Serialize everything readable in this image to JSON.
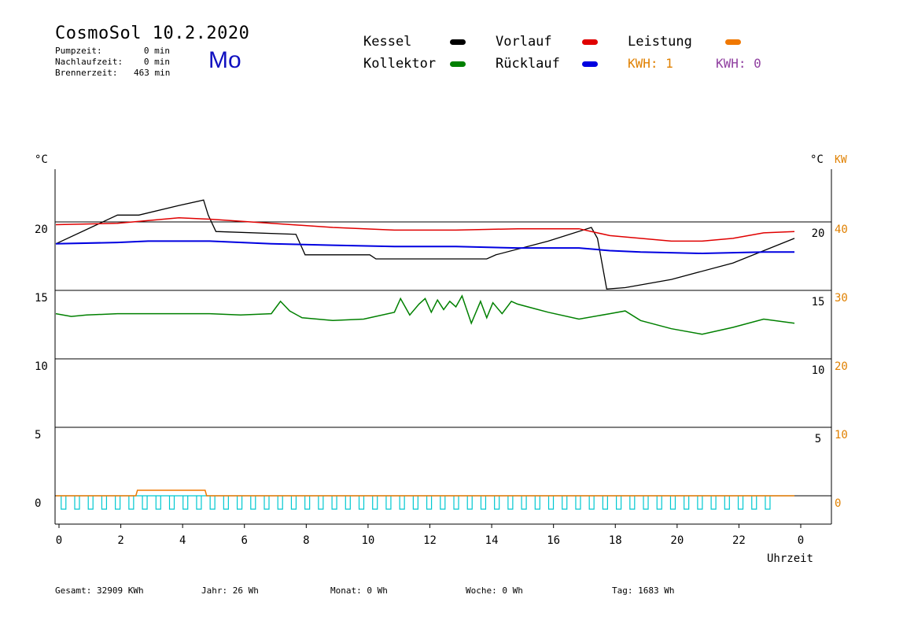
{
  "header": {
    "title": "CosmoSol 10.2.2020",
    "day": "Mo",
    "stats": [
      {
        "label": "Pumpzeit:",
        "value": "0 min"
      },
      {
        "label": "Nachlaufzeit:",
        "value": "0 min"
      },
      {
        "label": "Brennerzeit:",
        "value": "463 min"
      }
    ]
  },
  "legend": [
    {
      "label": "Kessel",
      "color": "#000000"
    },
    {
      "label": "Vorlauf",
      "color": "#e00000"
    },
    {
      "label": "Leistung",
      "color": "#f07800"
    },
    {
      "label": "Kollektor",
      "color": "#008000"
    },
    {
      "label": "Rücklauf",
      "color": "#0000e0"
    }
  ],
  "kwh": [
    {
      "label": "KWH: 1",
      "color": "#e08000"
    },
    {
      "label": "KWH: 0",
      "color": "#9040a0"
    }
  ],
  "footer": {
    "gesamt": "Gesamt:  32909 KWh",
    "jahr": "Jahr:     26 Wh",
    "monat": "Monat:      0 Wh",
    "woche": "Woche:      0 Wh",
    "tag": "Tag:   1683 Wh"
  },
  "chart_data": {
    "type": "line",
    "xlabel": "Uhrzeit",
    "x_ticks": [
      "0",
      "2",
      "4",
      "6",
      "8",
      "10",
      "12",
      "14",
      "16",
      "18",
      "20",
      "22",
      "0"
    ],
    "y_left_label": "°C",
    "y_left_ticks": [
      "0",
      "5",
      "10",
      "15",
      "20"
    ],
    "y_left_range": [
      0,
      25
    ],
    "y_right_label": "°C",
    "y_right_ticks": [
      "5",
      "10",
      "15",
      "20"
    ],
    "y_right_range": [
      0,
      25
    ],
    "y_kw_label": "KW",
    "y_kw_ticks": [
      "0",
      "10",
      "20",
      "30",
      "40"
    ],
    "y_kw_range": [
      0,
      50
    ],
    "x_range": [
      0,
      24
    ],
    "grid": "horizontal",
    "colors": {
      "pump_pulses": "#00c8d0",
      "axis": "#000000",
      "kw_axis": "#e08000"
    },
    "series": [
      {
        "name": "Kessel",
        "color": "#000000",
        "x": [
          0,
          2,
          2.7,
          4,
          4.8,
          4.95,
          5.2,
          7.8,
          8.1,
          10.2,
          10.4,
          14.0,
          14.3,
          16.0,
          17.4,
          17.6,
          17.9,
          18.5,
          20,
          22,
          24
        ],
        "y": [
          18.4,
          20.5,
          20.5,
          21.2,
          21.6,
          20.5,
          19.3,
          19.1,
          17.6,
          17.6,
          17.3,
          17.3,
          17.6,
          18.6,
          19.6,
          18.8,
          15.1,
          15.2,
          15.8,
          17.0,
          18.8
        ]
      },
      {
        "name": "Vorlauf",
        "color": "#e00000",
        "x": [
          0,
          2,
          4,
          5,
          7,
          9,
          11,
          13,
          15,
          17,
          18,
          20,
          21,
          22,
          23,
          24
        ],
        "y": [
          19.8,
          19.9,
          20.3,
          20.2,
          19.9,
          19.6,
          19.4,
          19.4,
          19.5,
          19.5,
          19.0,
          18.6,
          18.6,
          18.8,
          19.2,
          19.3
        ]
      },
      {
        "name": "Rücklauf",
        "color": "#0000e0",
        "x": [
          0,
          2,
          3,
          5,
          7,
          9,
          11,
          13,
          15,
          17,
          18,
          19,
          21,
          23,
          24
        ],
        "y": [
          18.4,
          18.5,
          18.6,
          18.6,
          18.4,
          18.3,
          18.2,
          18.2,
          18.1,
          18.1,
          17.9,
          17.8,
          17.7,
          17.8,
          17.8
        ],
        "width": 2
      },
      {
        "name": "Kollektor",
        "color": "#008000",
        "x": [
          0,
          0.5,
          1,
          2,
          3,
          4,
          5,
          6,
          7,
          7.3,
          7.6,
          8,
          9,
          10,
          11,
          11.2,
          11.5,
          11.8,
          12,
          12.2,
          12.4,
          12.6,
          12.8,
          13,
          13.2,
          13.5,
          13.8,
          14,
          14.2,
          14.5,
          14.8,
          15,
          15.5,
          16,
          17,
          18,
          18.5,
          19,
          20,
          21,
          22,
          23,
          24
        ],
        "y": [
          13.3,
          13.1,
          13.2,
          13.3,
          13.3,
          13.3,
          13.3,
          13.2,
          13.3,
          14.2,
          13.5,
          13.0,
          12.8,
          12.9,
          13.4,
          14.4,
          13.2,
          14.0,
          14.4,
          13.4,
          14.3,
          13.6,
          14.2,
          13.8,
          14.6,
          12.6,
          14.2,
          13.0,
          14.1,
          13.3,
          14.2,
          14.0,
          13.7,
          13.4,
          12.9,
          13.3,
          13.5,
          12.8,
          12.2,
          11.8,
          12.3,
          12.9,
          12.6
        ]
      },
      {
        "name": "Leistung",
        "color": "#f07800",
        "x": [
          0,
          2.6,
          2.65,
          4.85,
          4.9,
          24
        ],
        "y": [
          0,
          0,
          0.4,
          0.4,
          0,
          0
        ]
      }
    ],
    "pump_pulses": {
      "start": 0.25,
      "step": 0.44,
      "count": 53
    }
  }
}
